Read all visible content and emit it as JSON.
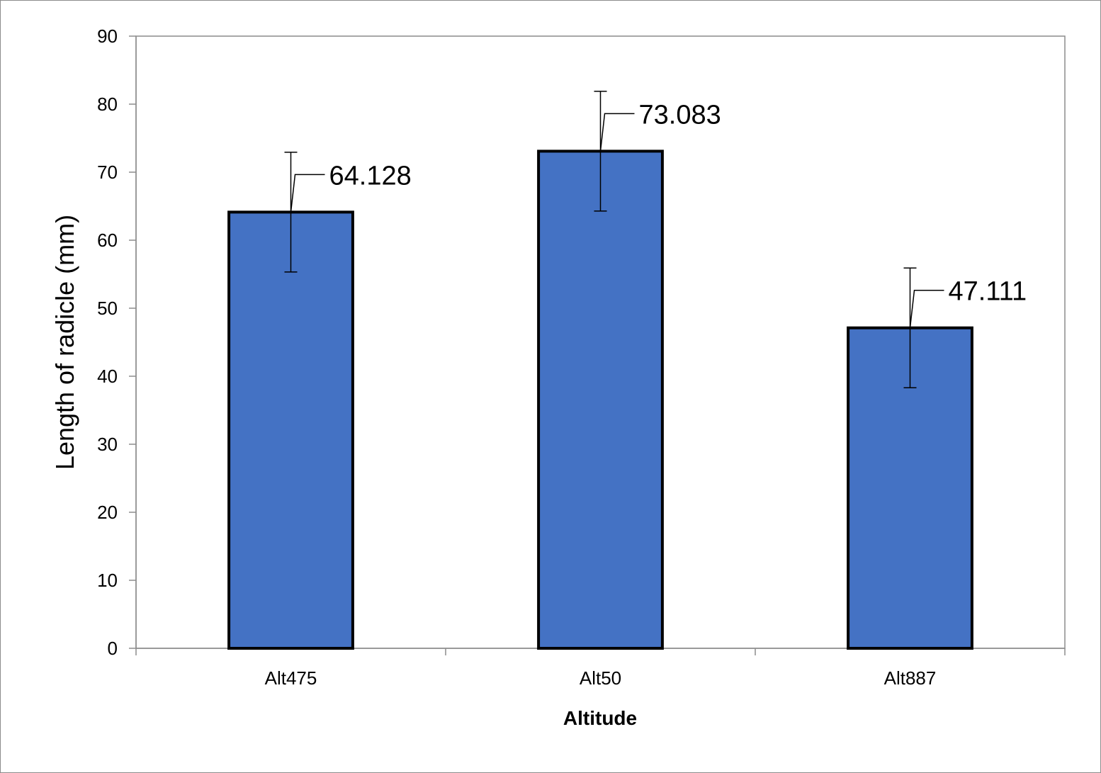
{
  "chart_data": {
    "type": "bar",
    "categories": [
      "Alt475",
      "Alt50",
      "Alt887"
    ],
    "values": [
      64.128,
      73.083,
      47.111
    ],
    "error": [
      8.8,
      8.8,
      8.8
    ],
    "data_labels": [
      "64.128",
      "73.083",
      "47.111"
    ],
    "xlabel": "Altitude",
    "ylabel": "Length of radicle (mm)",
    "ylim": [
      0,
      90
    ],
    "yticks": [
      0,
      10,
      20,
      30,
      40,
      50,
      60,
      70,
      80,
      90
    ],
    "grid": false,
    "legend": "none",
    "colors": {
      "bar_fill": "#4472c4",
      "bar_stroke": "#000000",
      "axis": "#8c8c8c"
    }
  }
}
